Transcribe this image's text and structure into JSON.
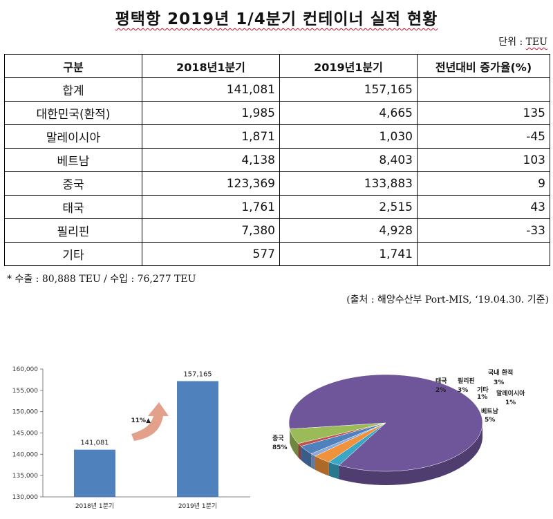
{
  "title": "평택항 2019년 1/4분기 컨테이너 실적 현황",
  "unit_prefix": "단위 : ",
  "unit_value": "TEU",
  "table": {
    "headers": [
      "구분",
      "2018년1분기",
      "2019년1분기",
      "전년대비 증가율(%)"
    ],
    "rows": [
      [
        "합계",
        "141,081",
        "157,165",
        ""
      ],
      [
        "대한민국(환적)",
        "1,985",
        "4,665",
        "135"
      ],
      [
        "말레이시아",
        "1,871",
        "1,030",
        "-45"
      ],
      [
        "베트남",
        "4,138",
        "8,403",
        "103"
      ],
      [
        "중국",
        "123,369",
        "133,883",
        "9"
      ],
      [
        "태국",
        "1,761",
        "2,515",
        "43"
      ],
      [
        "필리핀",
        "7,380",
        "4,928",
        "-33"
      ],
      [
        "기타",
        "577",
        "1,741",
        ""
      ]
    ]
  },
  "note": "* 수출 : 80,888 TEU / 수입 : 76,277 TEU",
  "source": "(출처 : 해양수산부 Port-MIS, ‘19.04.30. 기준)",
  "chart_data": [
    {
      "type": "bar",
      "categories": [
        "2018년 1분기",
        "2019년 1분기"
      ],
      "values": [
        141081,
        157165
      ],
      "data_labels": [
        "141,081",
        "157,165"
      ],
      "ylim": [
        130000,
        160000
      ],
      "yticks": [
        "130,000",
        "135,000",
        "140,000",
        "145,000",
        "150,000",
        "155,000",
        "160,000"
      ],
      "annotation": "11%▲",
      "bar_color": "#4f81bd",
      "arrow_color": "#e3a08a",
      "grid": false
    },
    {
      "type": "pie",
      "slices": [
        {
          "label": "중국",
          "pct_label": "85%",
          "value": 85,
          "color": "#6f559a"
        },
        {
          "label": "태국",
          "pct_label": "2%",
          "value": 2,
          "color": "#3ba6c6"
        },
        {
          "label": "필리핀",
          "pct_label": "3%",
          "value": 3,
          "color": "#f0923b"
        },
        {
          "label": "기타",
          "pct_label": "1%",
          "value": 1,
          "color": "#8da7d6"
        },
        {
          "label": "국내 환적",
          "pct_label": "3%",
          "value": 3,
          "color": "#4f81bd"
        },
        {
          "label": "말레이시아",
          "pct_label": "1%",
          "value": 1,
          "color": "#c0504d"
        },
        {
          "label": "베트남",
          "pct_label": "5%",
          "value": 5,
          "color": "#9bbb59"
        }
      ]
    }
  ]
}
